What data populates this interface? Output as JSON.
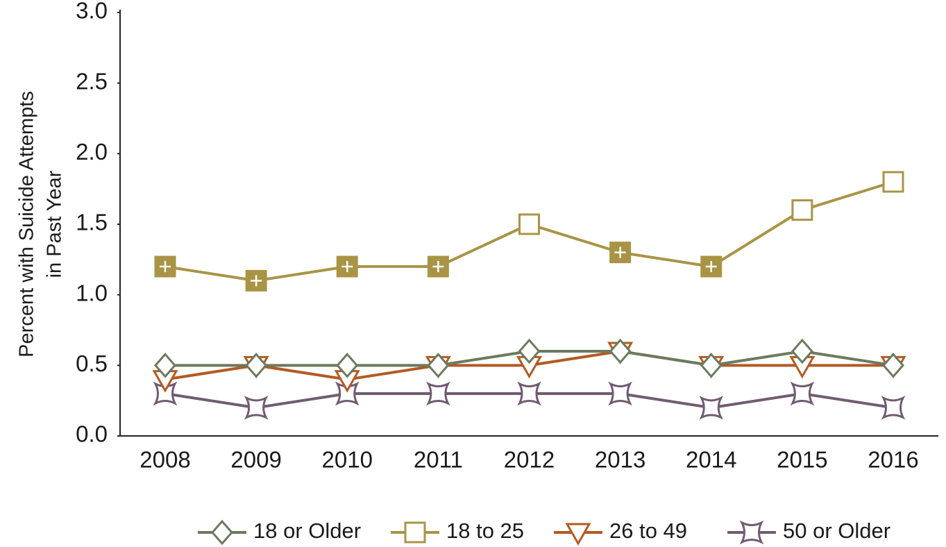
{
  "chart_data": {
    "type": "line",
    "y_label": [
      "Percent with Suicide Attempts",
      "in Past Year"
    ],
    "categories": [
      "2008",
      "2009",
      "2010",
      "2011",
      "2012",
      "2013",
      "2014",
      "2015",
      "2016"
    ],
    "ylim": [
      0,
      3
    ],
    "yticks": [
      {
        "value": 0,
        "label": "0.0"
      },
      0.5,
      {
        "value": 1,
        "label": "1.0"
      },
      1.5,
      {
        "value": 2,
        "label": "2.0"
      },
      2.5,
      {
        "value": 3,
        "label": "3.0"
      }
    ],
    "grid": false,
    "legend": "bottom",
    "series": [
      {
        "name": "18 or Older",
        "color": "#6b7a5e",
        "marker": "diamond",
        "values": [
          0.5,
          0.5,
          0.5,
          0.5,
          0.6,
          0.6,
          0.5,
          0.6,
          0.5
        ]
      },
      {
        "name": "18 to 25",
        "color": "#a99445",
        "marker": "square",
        "values": [
          1.2,
          1.1,
          1.2,
          1.2,
          1.5,
          1.3,
          1.2,
          1.6,
          1.8
        ],
        "marker_filled": [
          true,
          true,
          true,
          true,
          false,
          true,
          true,
          false,
          false
        ]
      },
      {
        "name": "26 to 49",
        "color": "#b35a22",
        "marker": "triangle-down",
        "values": [
          0.4,
          0.5,
          0.4,
          0.5,
          0.5,
          0.6,
          0.5,
          0.5,
          0.5
        ]
      },
      {
        "name": "50 or Older",
        "color": "#715b72",
        "marker": "concave-square",
        "values": [
          0.3,
          0.2,
          0.3,
          0.3,
          0.3,
          0.3,
          0.2,
          0.3,
          0.2
        ]
      }
    ]
  }
}
